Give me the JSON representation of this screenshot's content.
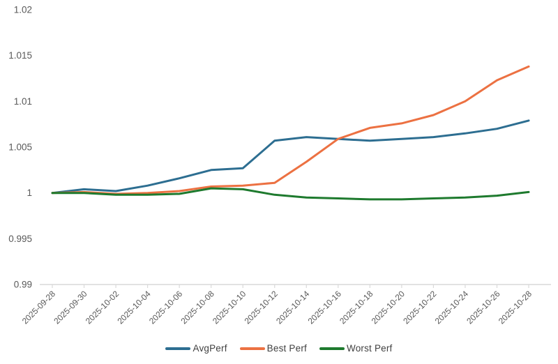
{
  "chart_data": {
    "type": "line",
    "x": [
      "2025-09-28",
      "2025-09-30",
      "2025-10-02",
      "2025-10-04",
      "2025-10-06",
      "2025-10-08",
      "2025-10-10",
      "2025-10-12",
      "2025-10-14",
      "2025-10-16",
      "2025-10-18",
      "2025-10-20",
      "2025-10-22",
      "2025-10-24",
      "2025-10-26",
      "2025-10-28"
    ],
    "series": [
      {
        "name": "AvgPerf",
        "color": "#2d6e91",
        "values": [
          1.0,
          1.0004,
          1.0002,
          1.0008,
          1.0016,
          1.0025,
          1.0027,
          1.0057,
          1.0061,
          1.0059,
          1.0057,
          1.0059,
          1.0061,
          1.0065,
          1.007,
          1.0079
        ]
      },
      {
        "name": "Best Perf",
        "color": "#ec7142",
        "values": [
          1.0,
          1.0001,
          0.9999,
          1.0,
          1.0002,
          1.0007,
          1.0008,
          1.0011,
          1.0034,
          1.0059,
          1.0071,
          1.0076,
          1.0085,
          1.01,
          1.0123,
          1.0138
        ]
      },
      {
        "name": "Worst Perf",
        "color": "#1e7a2e",
        "values": [
          1.0,
          1.0,
          0.9998,
          0.9998,
          0.9999,
          1.0005,
          1.0004,
          0.9998,
          0.9995,
          0.9994,
          0.9993,
          0.9993,
          0.9994,
          0.9995,
          0.9997,
          1.0001
        ]
      }
    ],
    "title": "",
    "xlabel": "",
    "ylabel": "",
    "ylim": [
      0.99,
      1.02
    ],
    "ytick_step": 0.005,
    "yticks": [
      "0.99",
      "0.995",
      "1",
      "1.005",
      "1.01",
      "1.015",
      "1.02"
    ],
    "grid": false,
    "legend_position": "bottom",
    "x_label_rotation_deg": -45
  },
  "style": {
    "axis_line_color": "#d9d9d9",
    "tick_color": "#d9d9d9",
    "y_label_color": "#595959",
    "x_label_color": "#595959",
    "legend_text_color": "#3f3f3f",
    "background": "#ffffff",
    "line_width": 3
  }
}
